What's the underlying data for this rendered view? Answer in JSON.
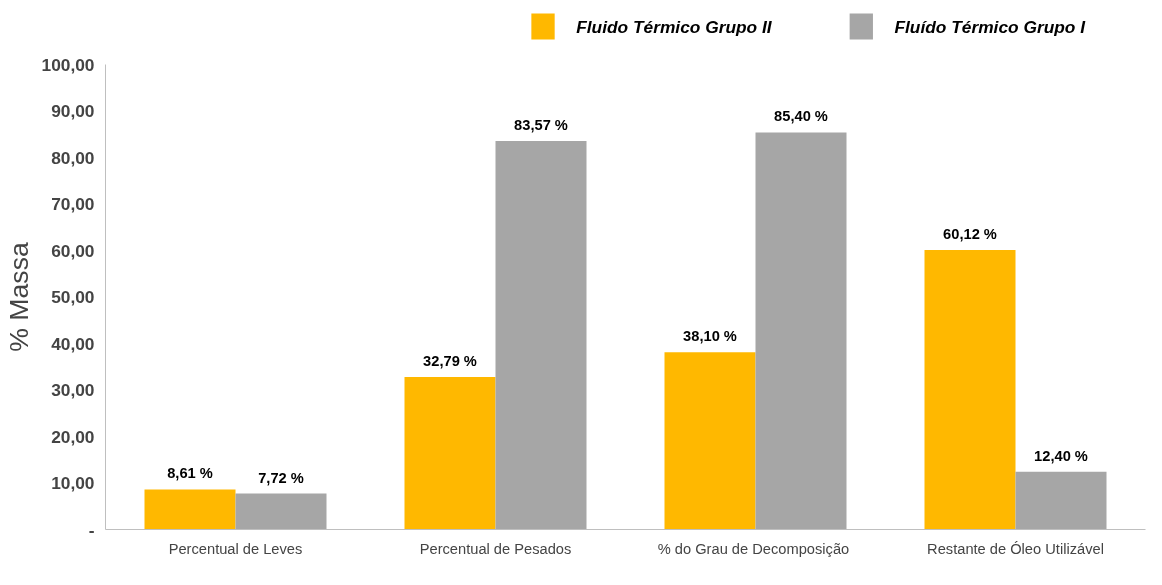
{
  "chart_data": {
    "type": "bar",
    "ylabel": "% Massa",
    "categories": [
      "Percentual de Leves",
      "Percentual de Pesados",
      "%  do Grau de Decomposição",
      "Restante de Óleo Utilizável"
    ],
    "series": [
      {
        "name": "Fluido Térmico Grupo II",
        "color": "#ffb800",
        "values": [
          8.61,
          32.79,
          38.1,
          60.12
        ],
        "value_labels": [
          "8,61 %",
          "32,79 %",
          "38,10 %",
          "60,12 %"
        ]
      },
      {
        "name": "Fluído Térmico Grupo I",
        "color": "#a6a6a6",
        "values": [
          7.72,
          83.57,
          85.4,
          12.4
        ],
        "value_labels": [
          "7,72 %",
          "83,57 %",
          "85,40 %",
          "12,40 %"
        ]
      }
    ],
    "ylim": [
      0,
      100
    ],
    "yticks": [
      {
        "value": 0,
        "label": "-"
      },
      {
        "value": 10,
        "label": "10,00"
      },
      {
        "value": 20,
        "label": "20,00"
      },
      {
        "value": 30,
        "label": "30,00"
      },
      {
        "value": 40,
        "label": "40,00"
      },
      {
        "value": 50,
        "label": "50,00"
      },
      {
        "value": 60,
        "label": "60,00"
      },
      {
        "value": 70,
        "label": "70,00"
      },
      {
        "value": 80,
        "label": "80,00"
      },
      {
        "value": 90,
        "label": "90,00"
      },
      {
        "value": 100,
        "label": "100,00"
      }
    ],
    "grid": false,
    "legend": "top"
  }
}
